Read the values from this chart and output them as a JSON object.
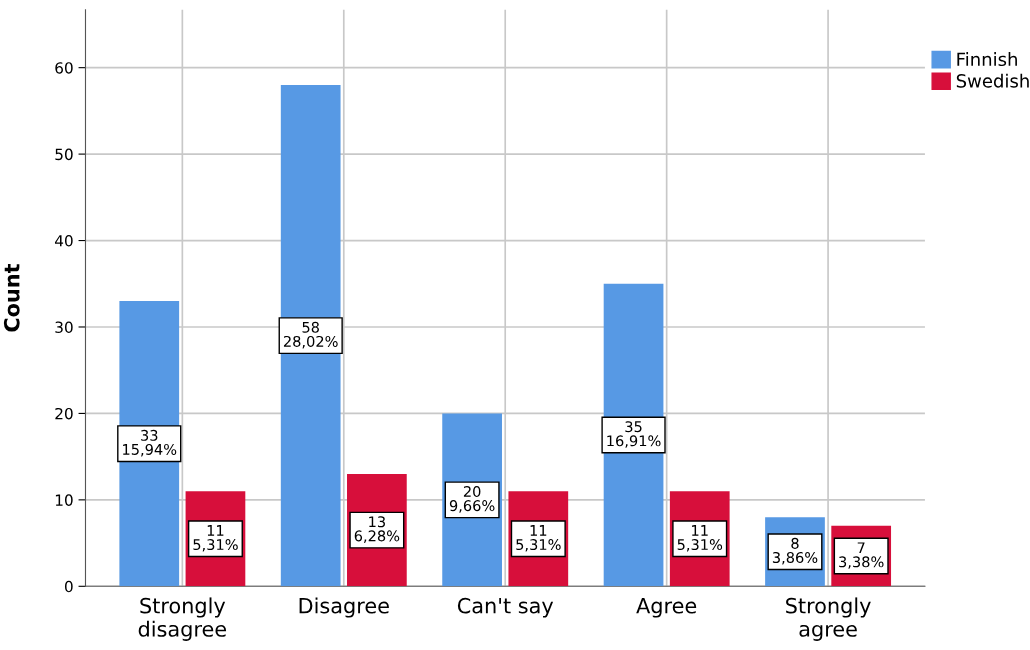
{
  "chart_data": {
    "type": "bar",
    "ylabel": "Count",
    "categories": [
      "Strongly\ndisagree",
      "Disagree",
      "Can't say",
      "Agree",
      "Strongly\nagree"
    ],
    "series": [
      {
        "name": "Finnish",
        "color": "#5799e4",
        "values": [
          33,
          58,
          20,
          35,
          8
        ],
        "value_labels": [
          "33\n15,94%",
          "58\n28,02%",
          "20\n9,66%",
          "35\n16,91%",
          "8\n3,86%"
        ]
      },
      {
        "name": "Swedish",
        "color": "#d70f3b",
        "values": [
          11,
          13,
          11,
          11,
          7
        ],
        "value_labels": [
          "11\n5,31%",
          "13\n6,28%",
          "11\n5,31%",
          "11\n5,31%",
          "7\n3,38%"
        ]
      }
    ],
    "ylim": [
      0,
      66.7
    ],
    "yticks": [
      0,
      10,
      20,
      30,
      40,
      50,
      60
    ],
    "grid": true,
    "legend": "top right"
  }
}
